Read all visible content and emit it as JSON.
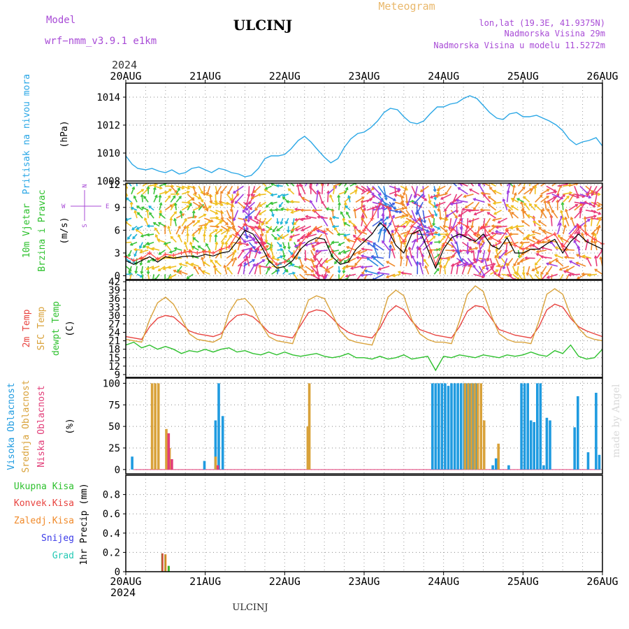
{
  "header": {
    "model_label": "Model",
    "model_name": "wrf−nmm_v3.9.1  e1km",
    "station": "ULCINJ",
    "product": "Meteogram",
    "lonlat": "lon,lat (19.3E, 41.9375N)",
    "altitude": "Nadmorska Visina 29m",
    "model_altitude": "Nadmorska Visina u modelu 11.5272m",
    "year_top": "2024",
    "year_bottom": "2024",
    "footer_station": "ULCINJ",
    "watermark": "made by Angel"
  },
  "colors": {
    "pressure": "#2aa7e6",
    "temp2m": "#e8433f",
    "sfc_temp": "#d9a23a",
    "dewpoint": "#2ec12e",
    "cloud_high": "#1f9be0",
    "cloud_mid": "#d9a23a",
    "cloud_low": "#e23d78",
    "precip_total": "#2ec12e",
    "precip_conv": "#e8433f",
    "precip_strat": "#f08a2a",
    "precip_snow": "#3b3be8",
    "precip_graupel": "#23c9b4",
    "gust": "#ff4444",
    "wind_speed": "#000000"
  },
  "chart_data": [
    {
      "type": "line",
      "id": "pressure",
      "ylabel_colored": "Pritisak na nivou mora",
      "unit": "(hPa)",
      "ylim": [
        1008,
        1015
      ],
      "yticks": [
        1008,
        1010,
        1012,
        1014
      ],
      "xlim": [
        0,
        6
      ],
      "xticks": [
        "20AUG",
        "21AUG",
        "22AUG",
        "23AUG",
        "24AUG",
        "25AUG",
        "26AUG"
      ],
      "grid": true,
      "series": [
        {
          "color_key": "pressure",
          "x": [
            0,
            0.08,
            0.15,
            0.25,
            0.33,
            0.42,
            0.5,
            0.58,
            0.67,
            0.75,
            0.83,
            0.92,
            1.0,
            1.08,
            1.17,
            1.25,
            1.33,
            1.42,
            1.5,
            1.58,
            1.67,
            1.75,
            1.83,
            1.92,
            2.0,
            2.08,
            2.17,
            2.25,
            2.33,
            2.42,
            2.5,
            2.58,
            2.67,
            2.75,
            2.83,
            2.92,
            3.0,
            3.08,
            3.17,
            3.25,
            3.33,
            3.42,
            3.5,
            3.58,
            3.67,
            3.75,
            3.83,
            3.92,
            4.0,
            4.08,
            4.17,
            4.25,
            4.33,
            4.42,
            4.5,
            4.58,
            4.67,
            4.75,
            4.83,
            4.92,
            5.0,
            5.08,
            5.17,
            5.25,
            5.33,
            5.42,
            5.5,
            5.58,
            5.67,
            5.75,
            5.83,
            5.92,
            6.0
          ],
          "y": [
            1009.8,
            1009.2,
            1008.9,
            1008.8,
            1008.9,
            1008.7,
            1008.6,
            1008.8,
            1008.5,
            1008.6,
            1008.9,
            1009.0,
            1008.8,
            1008.6,
            1008.9,
            1008.8,
            1008.6,
            1008.5,
            1008.3,
            1008.4,
            1008.9,
            1009.6,
            1009.8,
            1009.8,
            1009.9,
            1010.3,
            1010.9,
            1011.2,
            1010.8,
            1010.2,
            1009.7,
            1009.3,
            1009.6,
            1010.4,
            1011.0,
            1011.4,
            1011.5,
            1011.8,
            1012.3,
            1012.9,
            1013.2,
            1013.1,
            1012.6,
            1012.2,
            1012.1,
            1012.3,
            1012.8,
            1013.3,
            1013.3,
            1013.5,
            1013.6,
            1013.9,
            1014.1,
            1013.9,
            1013.4,
            1012.9,
            1012.5,
            1012.4,
            1012.8,
            1012.9,
            1012.6,
            1012.6,
            1012.7,
            1012.5,
            1012.3,
            1012.0,
            1011.6,
            1011.0,
            1010.6,
            1010.8,
            1010.9,
            1011.1,
            1010.5
          ]
        }
      ]
    },
    {
      "type": "line",
      "id": "wind",
      "ylabel_colored_1": "10m Vjetar",
      "ylabel_colored_2": "Brzina i Pravac",
      "unit": "(m/s)",
      "ylim": [
        -0.5,
        12.2
      ],
      "yticks": [
        0,
        3,
        6,
        9,
        12
      ],
      "compass": {
        "n": "N",
        "s": "S",
        "e": "E",
        "w": "W"
      },
      "grid": true,
      "speed": {
        "x": [
          0,
          0.1,
          0.2,
          0.3,
          0.4,
          0.5,
          0.6,
          0.7,
          0.8,
          0.9,
          1.0,
          1.1,
          1.2,
          1.3,
          1.4,
          1.5,
          1.6,
          1.7,
          1.8,
          1.9,
          2.0,
          2.1,
          2.2,
          2.3,
          2.4,
          2.5,
          2.6,
          2.7,
          2.8,
          2.9,
          3.0,
          3.1,
          3.2,
          3.3,
          3.4,
          3.5,
          3.6,
          3.7,
          3.8,
          3.9,
          4.0,
          4.1,
          4.2,
          4.3,
          4.4,
          4.5,
          4.6,
          4.7,
          4.8,
          4.9,
          5.0,
          5.1,
          5.2,
          5.3,
          5.4,
          5.5,
          5.6,
          5.7,
          5.8,
          5.9,
          6.0
        ],
        "y": [
          2.0,
          1.5,
          2.0,
          2.5,
          1.8,
          2.5,
          2.3,
          2.5,
          2.6,
          2.5,
          2.8,
          2.6,
          3.0,
          3.2,
          4.5,
          6.0,
          5.5,
          4.0,
          2.0,
          1.0,
          1.2,
          2.0,
          3.5,
          4.5,
          5.0,
          4.8,
          2.5,
          1.5,
          1.8,
          3.5,
          4.5,
          5.5,
          7.0,
          6.0,
          4.0,
          3.0,
          5.5,
          6.0,
          3.5,
          1.0,
          3.5,
          5.0,
          5.5,
          5.0,
          4.5,
          5.5,
          4.0,
          3.5,
          5.0,
          3.0,
          3.0,
          3.5,
          3.5,
          4.2,
          4.8,
          3.0,
          4.5,
          5.5,
          4.5,
          4.0,
          3.5
        ]
      },
      "gust": {
        "x": [
          0,
          0.1,
          0.2,
          0.3,
          0.4,
          0.5,
          0.6,
          0.7,
          0.8,
          0.9,
          1.0,
          1.1,
          1.2,
          1.3,
          1.4,
          1.5,
          1.6,
          1.7,
          1.8,
          1.9,
          2.0,
          2.1,
          2.2,
          2.3,
          2.4,
          2.5,
          2.6,
          2.7,
          2.8,
          2.9,
          3.0,
          3.1,
          3.2,
          3.3,
          3.4,
          3.5,
          3.6,
          3.7,
          3.8,
          3.9,
          4.0,
          4.1,
          4.2,
          4.3,
          4.4,
          4.5,
          4.6,
          4.7,
          4.8,
          4.9,
          5.0,
          5.1,
          5.2,
          5.3,
          5.4,
          5.5,
          5.6,
          5.7,
          5.8,
          5.9,
          6.0
        ],
        "y": [
          2.5,
          2.0,
          2.3,
          3.0,
          2.2,
          2.8,
          2.7,
          3.0,
          3.2,
          3.0,
          3.2,
          3.0,
          3.5,
          3.8,
          5.5,
          6.8,
          6.2,
          4.8,
          2.6,
          1.5,
          1.8,
          2.6,
          4.2,
          5.5,
          6.2,
          5.8,
          3.2,
          2.0,
          2.5,
          4.8,
          6.0,
          7.5,
          9.5,
          9.0,
          6.0,
          4.5,
          6.5,
          7.5,
          4.5,
          1.5,
          4.0,
          6.0,
          7.0,
          6.5,
          5.5,
          6.5,
          5.0,
          4.5,
          6.0,
          4.0,
          3.5,
          4.0,
          4.5,
          5.0,
          5.5,
          3.8,
          5.2,
          6.5,
          5.5,
          4.8,
          4.2
        ]
      }
    },
    {
      "type": "line",
      "id": "temperature",
      "ylabel_1": "2m Temp",
      "ylabel_2": "SFC Temp",
      "ylabel_3": "dewpt Temp",
      "unit": "(C)",
      "ylim": [
        8,
        42.5
      ],
      "yticks": [
        9,
        12,
        15,
        18,
        21,
        24,
        27,
        30,
        33,
        36,
        39,
        42
      ],
      "grid": true,
      "series": [
        {
          "name": "2m Temp",
          "color_key": "temp2m",
          "x": [
            0,
            0.1,
            0.2,
            0.3,
            0.4,
            0.5,
            0.6,
            0.7,
            0.8,
            0.9,
            1.0,
            1.1,
            1.2,
            1.3,
            1.4,
            1.5,
            1.6,
            1.7,
            1.8,
            1.9,
            2.0,
            2.1,
            2.2,
            2.3,
            2.4,
            2.5,
            2.6,
            2.7,
            2.8,
            2.9,
            3.0,
            3.1,
            3.2,
            3.3,
            3.4,
            3.5,
            3.6,
            3.7,
            3.8,
            3.9,
            4.0,
            4.1,
            4.2,
            4.3,
            4.4,
            4.5,
            4.6,
            4.7,
            4.8,
            4.9,
            5.0,
            5.1,
            5.2,
            5.3,
            5.4,
            5.5,
            5.6,
            5.7,
            5.8,
            5.9,
            6.0
          ],
          "y": [
            22.5,
            22.0,
            21.5,
            26.0,
            29.0,
            30.0,
            29.5,
            27.0,
            24.5,
            23.5,
            23.0,
            22.5,
            23.5,
            27.5,
            30.0,
            30.5,
            29.5,
            27.0,
            24.0,
            23.0,
            22.5,
            22.0,
            26.5,
            31.0,
            32.0,
            31.5,
            29.0,
            26.0,
            24.0,
            23.0,
            22.5,
            22.0,
            25.5,
            31.0,
            33.5,
            32.0,
            28.0,
            25.0,
            24.0,
            23.0,
            22.5,
            22.0,
            26.0,
            31.5,
            33.5,
            33.0,
            29.0,
            25.0,
            24.0,
            23.0,
            22.5,
            22.0,
            26.0,
            32.0,
            34.0,
            33.0,
            29.0,
            26.0,
            24.5,
            23.5,
            22.5
          ]
        },
        {
          "name": "SFC Temp",
          "color_key": "sfc_temp",
          "x": [
            0,
            0.1,
            0.2,
            0.3,
            0.4,
            0.5,
            0.6,
            0.7,
            0.8,
            0.9,
            1.0,
            1.1,
            1.2,
            1.3,
            1.4,
            1.5,
            1.6,
            1.7,
            1.8,
            1.9,
            2.0,
            2.1,
            2.2,
            2.3,
            2.4,
            2.5,
            2.6,
            2.7,
            2.8,
            2.9,
            3.0,
            3.1,
            3.2,
            3.3,
            3.4,
            3.5,
            3.6,
            3.7,
            3.8,
            3.9,
            4.0,
            4.1,
            4.2,
            4.3,
            4.4,
            4.5,
            4.6,
            4.7,
            4.8,
            4.9,
            5.0,
            5.1,
            5.2,
            5.3,
            5.4,
            5.5,
            5.6,
            5.7,
            5.8,
            5.9,
            6.0
          ],
          "y": [
            21.5,
            21.0,
            20.5,
            28.5,
            34.5,
            36.5,
            34.0,
            29.0,
            23.5,
            21.5,
            21.0,
            20.5,
            22.0,
            31.0,
            35.5,
            36.0,
            33.0,
            27.0,
            22.5,
            21.0,
            20.5,
            20.0,
            28.0,
            35.5,
            37.0,
            36.0,
            30.5,
            24.5,
            21.5,
            20.5,
            20.0,
            19.5,
            27.0,
            36.5,
            39.0,
            37.0,
            28.5,
            23.5,
            21.5,
            20.5,
            20.5,
            20.0,
            28.0,
            37.5,
            40.5,
            38.5,
            30.0,
            23.5,
            21.5,
            20.5,
            20.5,
            20.0,
            28.0,
            37.5,
            39.5,
            37.5,
            30.0,
            25.5,
            22.5,
            21.5,
            21.0
          ]
        },
        {
          "name": "dewpt Temp",
          "color_key": "dewpoint",
          "x": [
            0,
            0.1,
            0.2,
            0.3,
            0.4,
            0.5,
            0.6,
            0.7,
            0.8,
            0.9,
            1.0,
            1.1,
            1.2,
            1.3,
            1.4,
            1.5,
            1.6,
            1.7,
            1.8,
            1.9,
            2.0,
            2.1,
            2.2,
            2.3,
            2.4,
            2.5,
            2.6,
            2.7,
            2.8,
            2.9,
            3.0,
            3.1,
            3.2,
            3.3,
            3.4,
            3.5,
            3.6,
            3.7,
            3.8,
            3.9,
            4.0,
            4.1,
            4.2,
            4.3,
            4.4,
            4.5,
            4.6,
            4.7,
            4.8,
            4.9,
            5.0,
            5.1,
            5.2,
            5.3,
            5.4,
            5.5,
            5.6,
            5.7,
            5.8,
            5.9,
            6.0
          ],
          "y": [
            19.5,
            20.5,
            18.5,
            19.5,
            18.0,
            19.0,
            18.0,
            16.5,
            17.5,
            17.0,
            18.0,
            17.0,
            18.0,
            18.5,
            17.0,
            17.5,
            16.5,
            16.0,
            17.0,
            16.0,
            17.0,
            16.0,
            15.5,
            16.0,
            16.5,
            15.5,
            15.0,
            15.5,
            16.5,
            15.0,
            15.0,
            14.5,
            15.5,
            14.5,
            15.0,
            16.0,
            14.5,
            15.0,
            15.5,
            10.5,
            15.5,
            15.0,
            16.0,
            15.5,
            15.0,
            16.0,
            15.5,
            15.0,
            16.0,
            15.5,
            16.0,
            17.0,
            16.0,
            15.5,
            17.5,
            16.5,
            19.5,
            15.5,
            14.5,
            15.0,
            18.0
          ]
        }
      ]
    },
    {
      "type": "bar",
      "id": "clouds",
      "ylabel_1": "Visoka Oblacnost",
      "ylabel_2": "Srednja Oblacnost",
      "ylabel_3": "Niska Oblacnost",
      "unit": "(%)",
      "ylim": [
        -5,
        106
      ],
      "yticks": [
        0,
        25,
        50,
        75,
        100
      ],
      "grid": true,
      "high": [
        [
          0.08,
          15
        ],
        [
          0.99,
          10
        ],
        [
          1.13,
          57
        ],
        [
          1.17,
          100
        ],
        [
          1.22,
          62
        ],
        [
          3.86,
          100
        ],
        [
          3.9,
          100
        ],
        [
          3.94,
          100
        ],
        [
          3.98,
          100
        ],
        [
          4.02,
          100
        ],
        [
          4.06,
          97
        ],
        [
          4.1,
          100
        ],
        [
          4.14,
          100
        ],
        [
          4.18,
          100
        ],
        [
          4.22,
          100
        ],
        [
          4.26,
          100
        ],
        [
          4.3,
          100
        ],
        [
          4.34,
          100
        ],
        [
          4.38,
          100
        ],
        [
          4.42,
          100
        ],
        [
          4.62,
          5
        ],
        [
          4.66,
          13
        ],
        [
          4.82,
          5
        ],
        [
          4.98,
          100
        ],
        [
          5.02,
          100
        ],
        [
          5.06,
          100
        ],
        [
          5.1,
          57
        ],
        [
          5.14,
          55
        ],
        [
          5.18,
          100
        ],
        [
          5.22,
          100
        ],
        [
          5.26,
          5
        ],
        [
          5.3,
          60
        ],
        [
          5.34,
          57
        ],
        [
          5.65,
          49
        ],
        [
          5.69,
          85
        ],
        [
          5.82,
          20
        ],
        [
          5.92,
          89
        ],
        [
          5.96,
          17
        ]
      ],
      "mid": [
        [
          0.32,
          100
        ],
        [
          0.36,
          100
        ],
        [
          0.4,
          100
        ],
        [
          0.5,
          47
        ],
        [
          0.54,
          25
        ],
        [
          1.12,
          15
        ],
        [
          2.28,
          50
        ],
        [
          2.3,
          100
        ],
        [
          4.26,
          100
        ],
        [
          4.3,
          100
        ],
        [
          4.34,
          100
        ],
        [
          4.38,
          100
        ],
        [
          4.42,
          100
        ],
        [
          4.46,
          100
        ],
        [
          4.5,
          57
        ],
        [
          4.68,
          30
        ]
      ],
      "low": [
        [
          0.52,
          42
        ],
        [
          0.56,
          12
        ],
        [
          1.14,
          5
        ]
      ]
    },
    {
      "type": "bar",
      "id": "precip",
      "ylabel": "1hr Precip (mm)",
      "legend": [
        "Ukupna Kisa",
        "Konvek.Kisa",
        "Zaledj.Kisa",
        "Snijeg",
        "Grad"
      ],
      "ylim": [
        0,
        1.0
      ],
      "yticks": [
        0,
        0.2,
        0.4,
        0.6,
        0.8
      ],
      "grid": true,
      "bars": [
        [
          0.46,
          0.19
        ],
        [
          0.5,
          0.18
        ],
        [
          0.54,
          0.06
        ]
      ]
    }
  ]
}
